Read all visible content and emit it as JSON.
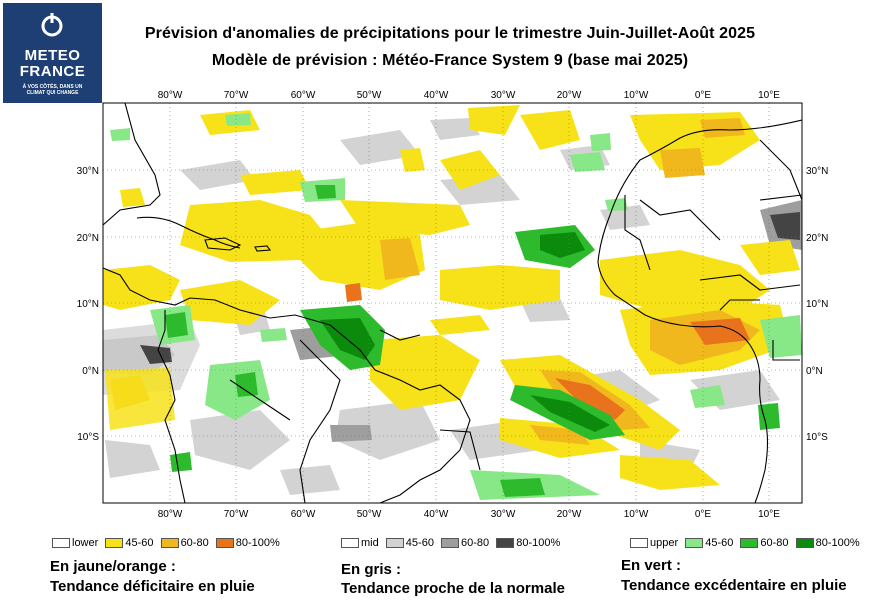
{
  "logo": {
    "brand_line1": "METEO",
    "brand_line2": "FRANCE",
    "tagline": "À VOS CÔTÉS, DANS UN CLIMAT QUI CHANGE"
  },
  "title": {
    "line1": "Prévision d'anomalies de précipitations pour le trimestre Juin-Juillet-Août 2025",
    "line2": "Modèle de prévision : Météo-France System 9 (base mai 2025)"
  },
  "map": {
    "lon_labels": [
      "80°W",
      "70°W",
      "60°W",
      "50°W",
      "40°W",
      "30°W",
      "20°W",
      "10°W",
      "0°E",
      "10°E"
    ],
    "lat_labels": [
      "30°N",
      "20°N",
      "10°N",
      "0°N",
      "10°S"
    ],
    "colors": {
      "yellow": "#f7e21a",
      "orange_light": "#f0b81c",
      "orange_dark": "#e8731c",
      "gray_light": "#d3d3d3",
      "gray_mid": "#9e9e9e",
      "gray_dark": "#444444",
      "green_light": "#88e888",
      "green_mid": "#2dbb2d",
      "green_dark": "#0b8a0b"
    }
  },
  "legend": {
    "dry": {
      "items": [
        "lower",
        "45-60",
        "60-80",
        "80-100%"
      ],
      "heading": "En jaune/orange :",
      "caption": "Tendance déficitaire en pluie"
    },
    "normal": {
      "items": [
        "mid",
        "45-60",
        "60-80",
        "80-100%"
      ],
      "heading": "En gris :",
      "caption": "Tendance proche de la normale"
    },
    "wet": {
      "items": [
        "upper",
        "45-60",
        "60-80",
        "80-100%"
      ],
      "heading": "En vert :",
      "caption": "Tendance excédentaire en pluie"
    }
  }
}
